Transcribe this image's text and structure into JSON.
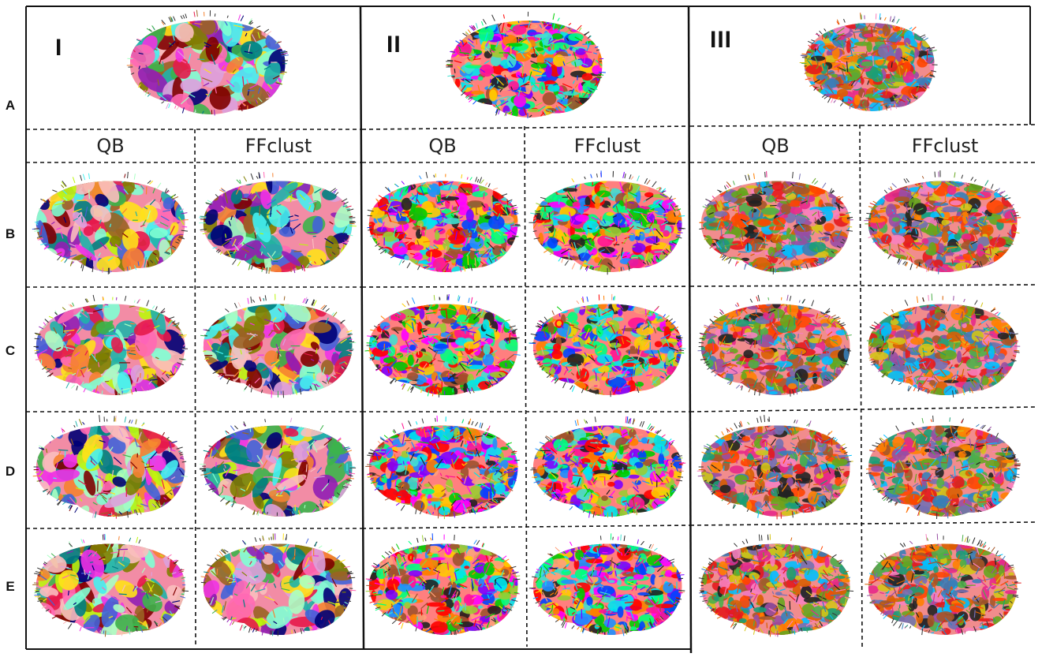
{
  "row_labels": [
    "A",
    "B",
    "C",
    "D",
    "E"
  ],
  "panel_labels": [
    "I",
    "II",
    "III"
  ],
  "column_headers": {
    "qb": "QB",
    "ffclust": "FFclust"
  },
  "palettes": {
    "I": [
      "#e6194b",
      "#3cb44b",
      "#ffe119",
      "#4363d8",
      "#f58231",
      "#911eb4",
      "#46f0f0",
      "#f032e6",
      "#bcf60c",
      "#fabebe",
      "#008080",
      "#9a6324",
      "#800000",
      "#aaffc3",
      "#808000",
      "#000075",
      "#ff69b4",
      "#7fffd4",
      "#dda0dd",
      "#20b2aa"
    ],
    "II": [
      "#ff0000",
      "#00cc00",
      "#0044ff",
      "#ffcc00",
      "#ff00ff",
      "#00e5ee",
      "#ff7f00",
      "#7f00ff",
      "#00ff7f",
      "#a0522d",
      "#ff1493",
      "#1e90ff",
      "#9acd32",
      "#ffa07a",
      "#222222",
      "#40e0d0"
    ],
    "III": [
      "#e41a1c",
      "#377eb8",
      "#4daf4a",
      "#984ea3",
      "#ff7f00",
      "#d4c417",
      "#a65628",
      "#f781bf",
      "#1b9e77",
      "#d95f02",
      "#7570b3",
      "#e7298a",
      "#66a61e",
      "#222222",
      "#00bfff",
      "#ff4500"
    ]
  }
}
